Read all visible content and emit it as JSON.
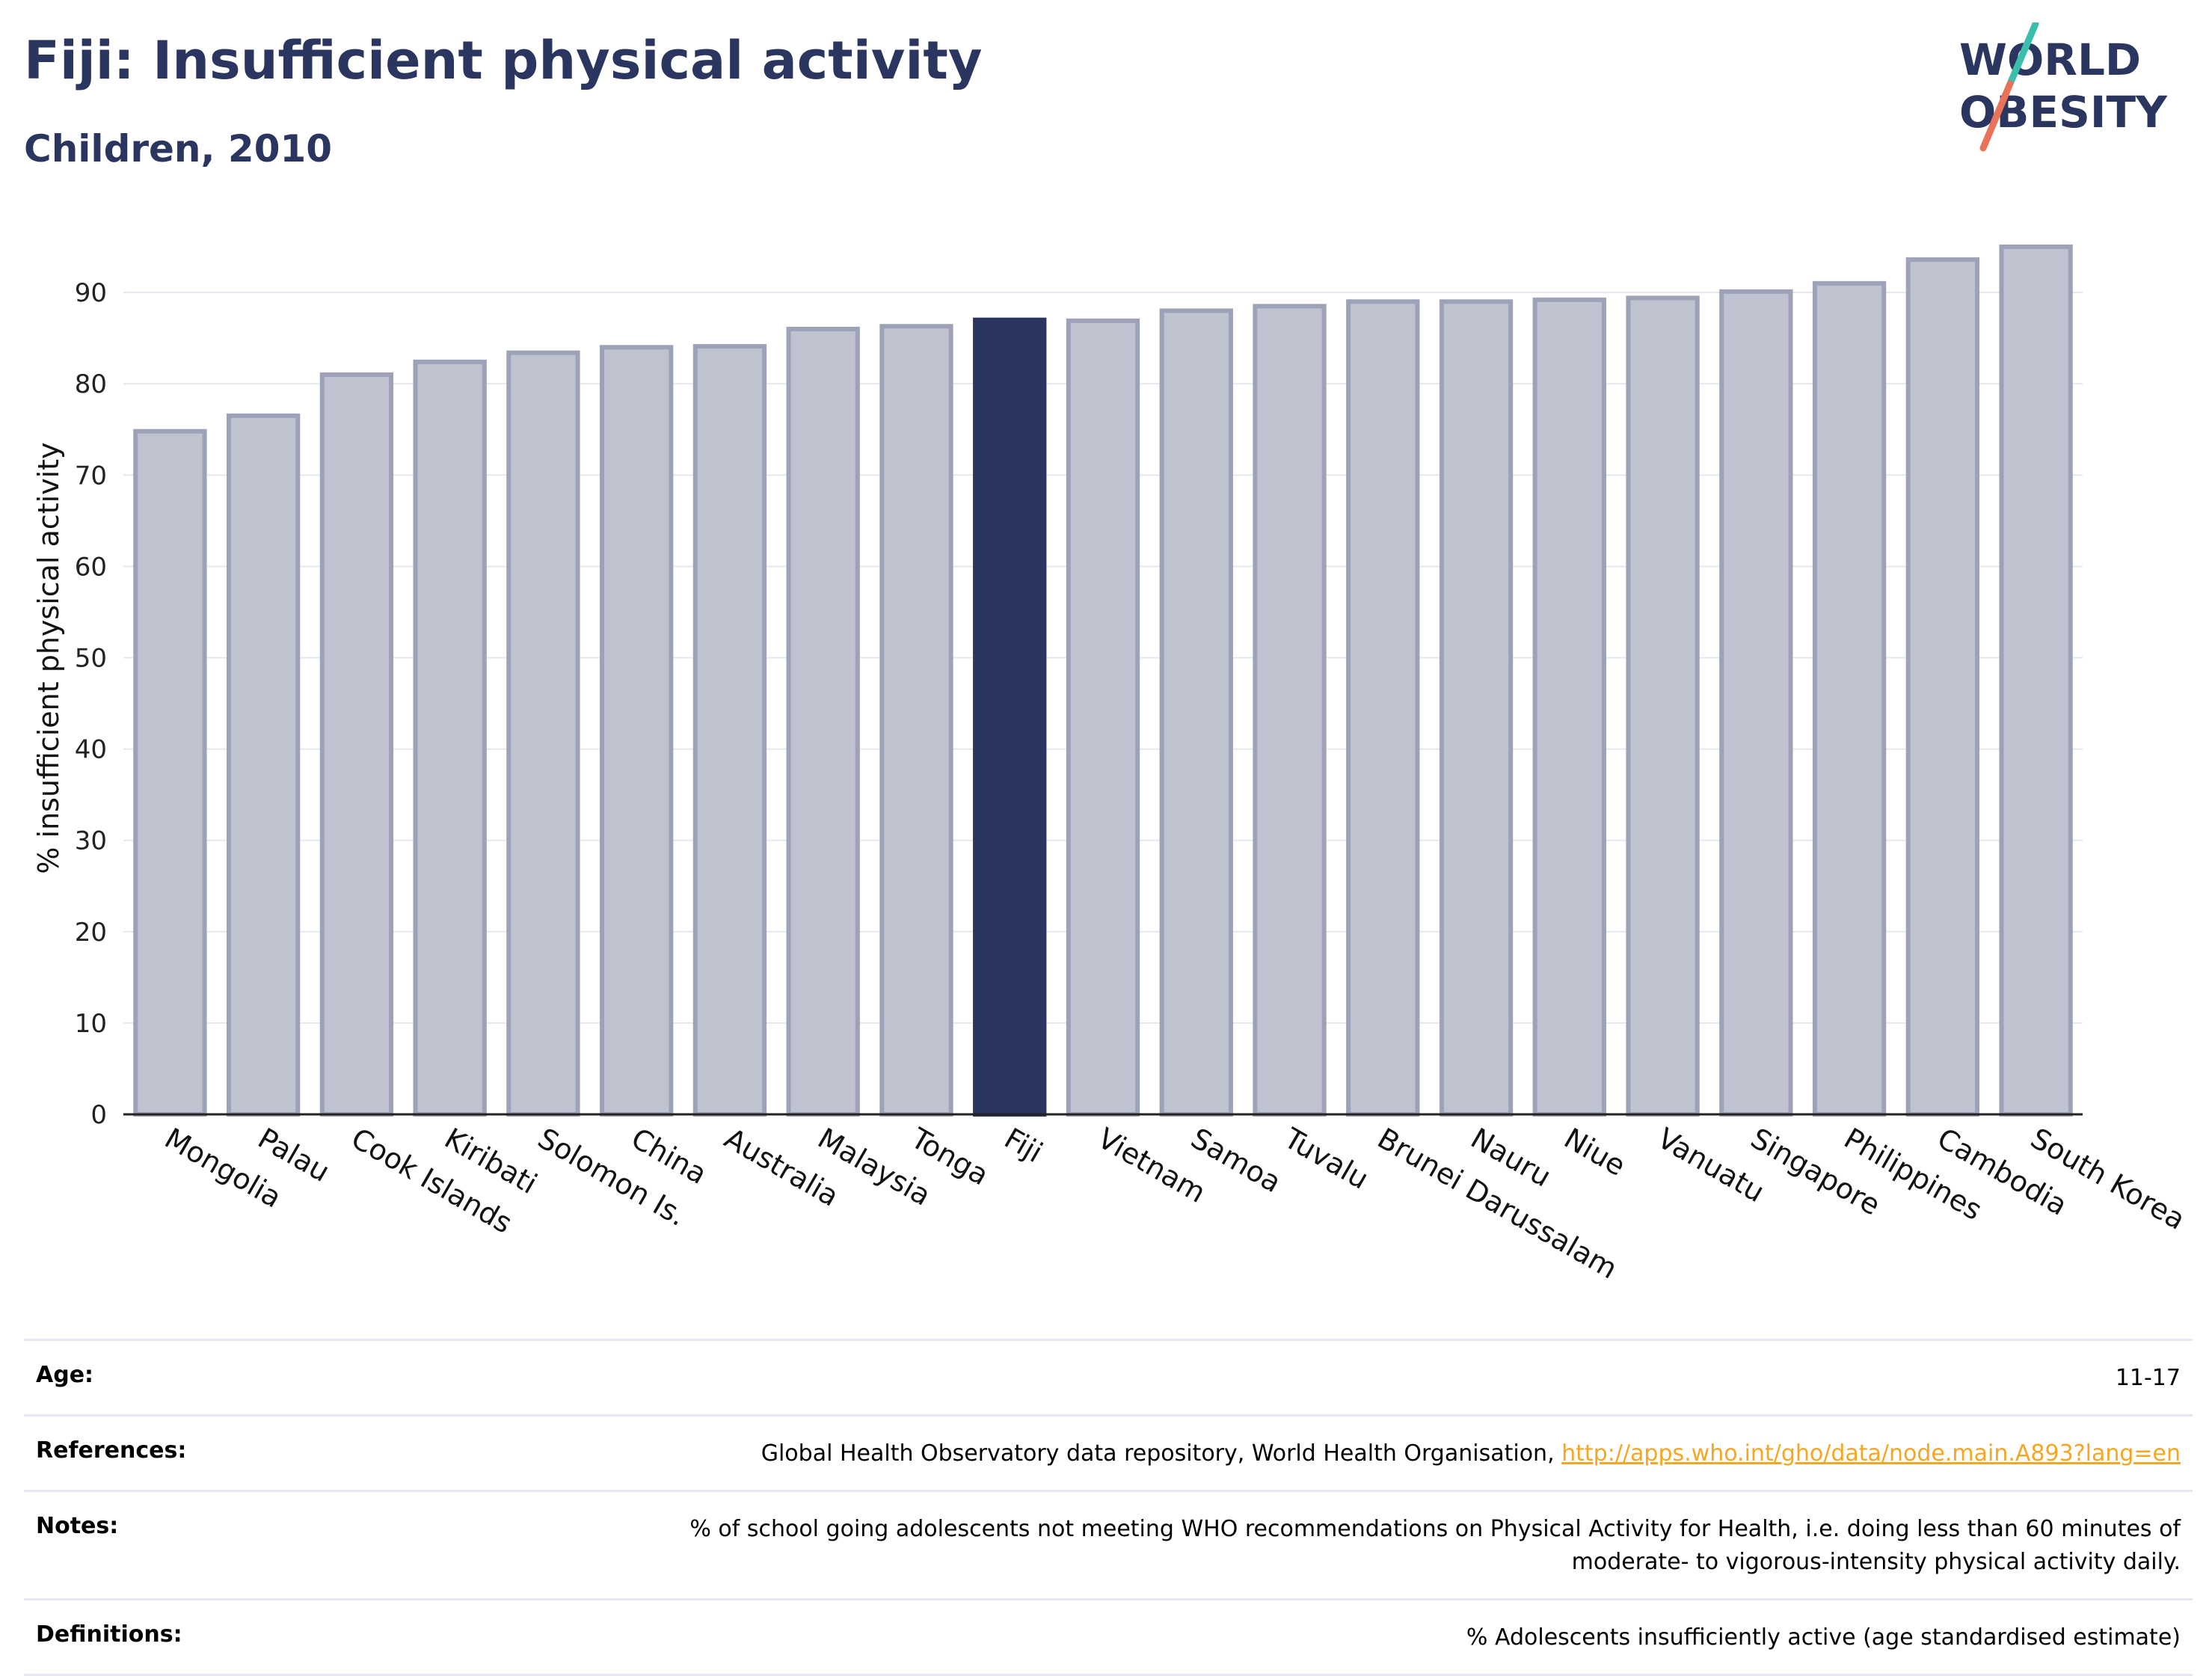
{
  "header": {
    "title": "Fiji: Insufficient physical activity",
    "subtitle": "Children, 2010"
  },
  "logo": {
    "line1": "WORLD",
    "line2": "OBESITY",
    "text_color": "#2b3660",
    "slash_colors": [
      "#3bbfad",
      "#e8735a"
    ]
  },
  "chart_data": {
    "type": "bar",
    "ylabel": "% insufficient physical activity",
    "xlabel": "",
    "ylim": [
      0,
      95
    ],
    "yticks": [
      0,
      10,
      20,
      30,
      40,
      50,
      60,
      70,
      80,
      90
    ],
    "grid": true,
    "highlight": "Fiji",
    "colors": {
      "bar_fill": "#bfc2cf",
      "bar_border": "#9da2b8",
      "highlight_fill": "#2b3660"
    },
    "categories": [
      "Mongolia",
      "Palau",
      "Cook Islands",
      "Kiribati",
      "Solomon Is.",
      "China",
      "Australia",
      "Malaysia",
      "Tonga",
      "Fiji",
      "Vietnam",
      "Samoa",
      "Tuvalu",
      "Brunei Darussalam",
      "Nauru",
      "Niue",
      "Vanuatu",
      "Singapore",
      "Philippines",
      "Cambodia",
      "South Korea"
    ],
    "values": [
      74.8,
      76.5,
      81.0,
      82.4,
      83.4,
      84.0,
      84.1,
      86.0,
      86.3,
      87.0,
      86.9,
      88.0,
      88.5,
      89.0,
      89.0,
      89.2,
      89.4,
      90.1,
      91.0,
      93.6,
      95.0
    ]
  },
  "meta": {
    "age_label": "Age:",
    "age_value": "11-17",
    "references_label": "References:",
    "references_text": "Global Health Observatory data repository, World Health Organisation, ",
    "references_link": "http://apps.who.int/gho/data/node.main.A893?lang=en",
    "notes_label": "Notes:",
    "notes_text": "% of school going adolescents not meeting WHO recommendations on Physical Activity for Health, i.e. doing less than 60 minutes of moderate- to vigorous-intensity physical activity daily.",
    "definitions_label": "Definitions:",
    "definitions_text": "% Adolescents insufficiently active (age standardised estimate)"
  }
}
